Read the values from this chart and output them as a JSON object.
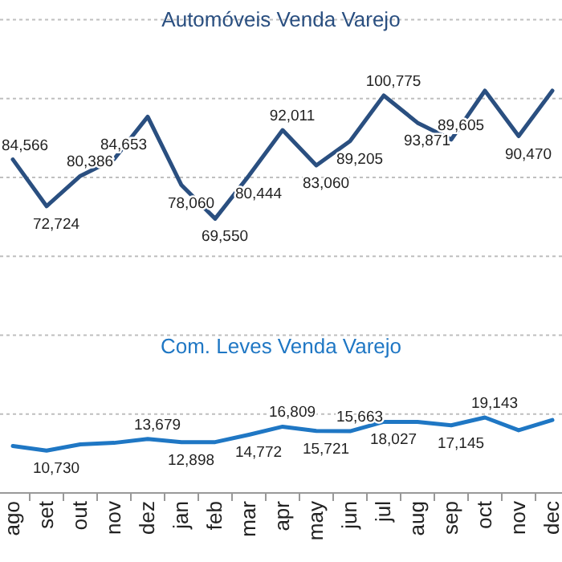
{
  "chart_data": {
    "type": "line",
    "categories": [
      "ago",
      "set",
      "out",
      "nov",
      "dez",
      "jan",
      "feb",
      "mar",
      "apr",
      "may",
      "jun",
      "jul",
      "aug",
      "sep",
      "oct",
      "nov",
      "dec"
    ],
    "series": [
      {
        "name": "Automóveis Venda Varejo",
        "color": "#2a4f80",
        "values": [
          84566,
          72724,
          80386,
          84653,
          95400,
          78060,
          69550,
          80444,
          92011,
          83060,
          89205,
          100775,
          93871,
          89605,
          102000,
          90470,
          102000
        ],
        "value_labels": [
          "84,566",
          "72,724",
          "80,386",
          "84,653",
          null,
          "78,060",
          "69,550",
          "80,444",
          "92,011",
          "83,060",
          "89,205",
          "100,775",
          "93,871",
          "89,605",
          null,
          "90,470",
          null
        ]
      },
      {
        "name": "Com. Leves Venda Varejo",
        "color": "#1f77c4",
        "values": [
          11900,
          10730,
          12300,
          12700,
          13679,
          12898,
          12900,
          14772,
          16809,
          15721,
          15663,
          18027,
          18000,
          17145,
          19143,
          15900,
          18500
        ],
        "value_labels": [
          null,
          "10,730",
          null,
          null,
          "13,679",
          "12,898",
          null,
          "14,772",
          "16,809",
          "15,721",
          "15,663",
          "18,027",
          null,
          "17,145",
          "19,143",
          null,
          null
        ]
      }
    ],
    "ylim": [
      0,
      125000
    ],
    "yticks": [
      {
        "value": 0,
        "label": null
      },
      {
        "value": 20000,
        "label": null
      },
      {
        "value": 40000,
        "label": null
      },
      {
        "value": 60000,
        "label": null
      },
      {
        "value": 80000,
        "label": null
      },
      {
        "value": 100000,
        "label": null
      },
      {
        "value": 120000,
        "label": null
      }
    ],
    "grid": "y",
    "tick_labels": "x"
  }
}
